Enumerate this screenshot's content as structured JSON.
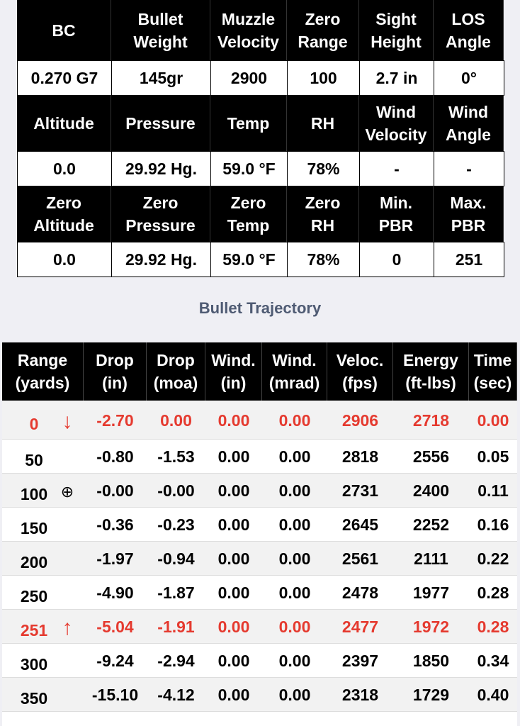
{
  "summary": {
    "sections": [
      {
        "headers": [
          [
            "BC"
          ],
          [
            "Bullet",
            "Weight"
          ],
          [
            "Muzzle",
            "Velocity"
          ],
          [
            "Zero",
            "Range"
          ],
          [
            "Sight",
            "Height"
          ],
          [
            "LOS",
            "Angle"
          ]
        ],
        "values": [
          "0.270 G7",
          "145gr",
          "2900",
          "100",
          "2.7 in",
          "0°"
        ]
      },
      {
        "headers": [
          [
            "Altitude"
          ],
          [
            "Pressure"
          ],
          [
            "Temp"
          ],
          [
            "RH"
          ],
          [
            "Wind",
            "Velocity"
          ],
          [
            "Wind",
            "Angle"
          ]
        ],
        "values": [
          "0.0",
          "29.92 Hg.",
          "59.0 °F",
          "78%",
          "-",
          "-"
        ]
      },
      {
        "headers": [
          [
            "Zero",
            "Altitude"
          ],
          [
            "Zero",
            "Pressure"
          ],
          [
            "Zero",
            "Temp"
          ],
          [
            "Zero",
            "RH"
          ],
          [
            "Min.",
            "PBR"
          ],
          [
            "Max.",
            "PBR"
          ]
        ],
        "values": [
          "0.0",
          "29.92 Hg.",
          "59.0 °F",
          "78%",
          "0",
          "251"
        ]
      }
    ]
  },
  "trajectory": {
    "title": "Bullet Trajectory",
    "headers": [
      [
        "Range",
        "(yards)"
      ],
      [
        "Drop",
        "(in)"
      ],
      [
        "Drop",
        "(moa)"
      ],
      [
        "Wind.",
        "(in)"
      ],
      [
        "Wind.",
        "(mrad)"
      ],
      [
        "Veloc.",
        "(fps)"
      ],
      [
        "Energy",
        "(ft-lbs)"
      ],
      [
        "Time",
        "(sec)"
      ]
    ],
    "rows": [
      {
        "cells": [
          "0",
          "-2.70",
          "0.00",
          "0.00",
          "0.00",
          "2906",
          "2718",
          "0.00"
        ],
        "marker": "↓",
        "highlight": true
      },
      {
        "cells": [
          "50",
          "-0.80",
          "-1.53",
          "0.00",
          "0.00",
          "2818",
          "2556",
          "0.05"
        ]
      },
      {
        "cells": [
          "100",
          "-0.00",
          "-0.00",
          "0.00",
          "0.00",
          "2731",
          "2400",
          "0.11"
        ],
        "marker": "⊕"
      },
      {
        "cells": [
          "150",
          "-0.36",
          "-0.23",
          "0.00",
          "0.00",
          "2645",
          "2252",
          "0.16"
        ]
      },
      {
        "cells": [
          "200",
          "-1.97",
          "-0.94",
          "0.00",
          "0.00",
          "2561",
          "2111",
          "0.22"
        ]
      },
      {
        "cells": [
          "250",
          "-4.90",
          "-1.87",
          "0.00",
          "0.00",
          "2478",
          "1977",
          "0.28"
        ]
      },
      {
        "cells": [
          "251",
          "-5.04",
          "-1.91",
          "0.00",
          "0.00",
          "2477",
          "1972",
          "0.28"
        ],
        "marker": "↑",
        "highlight": true
      },
      {
        "cells": [
          "300",
          "-9.24",
          "-2.94",
          "0.00",
          "0.00",
          "2397",
          "1850",
          "0.34"
        ]
      },
      {
        "cells": [
          "350",
          "-15.10",
          "-4.12",
          "0.00",
          "0.00",
          "2318",
          "1729",
          "0.40"
        ]
      }
    ]
  }
}
